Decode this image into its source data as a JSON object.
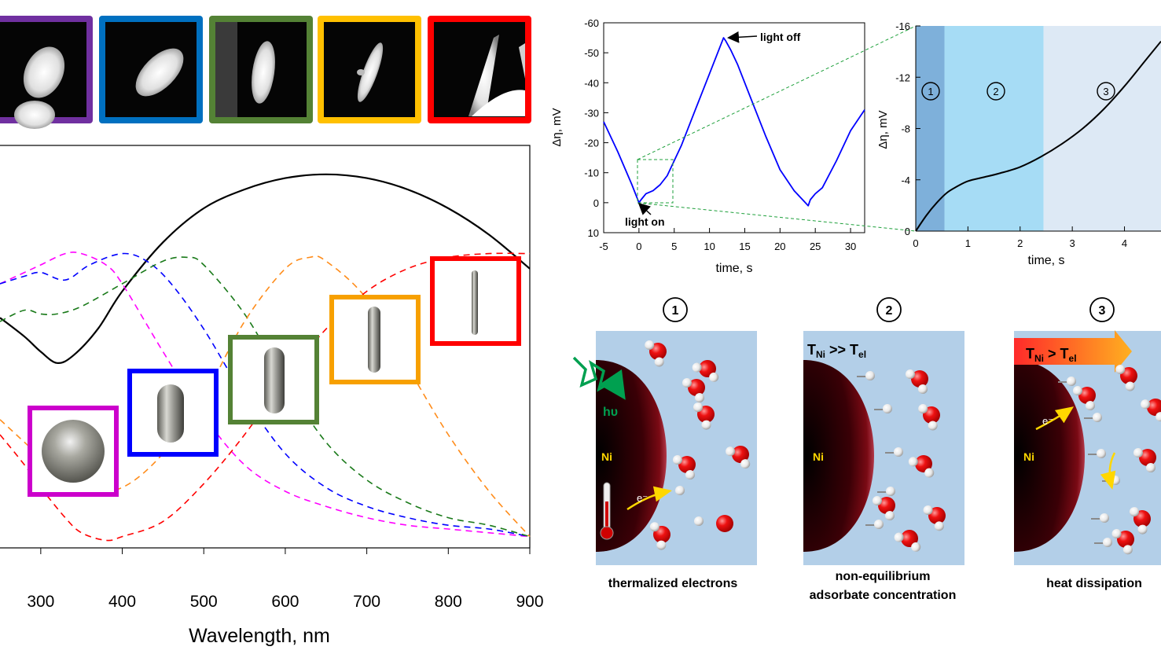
{
  "panel_left": {
    "xlabel": "Wavelength, nm",
    "x_ticks": [
      "300",
      "400",
      "500",
      "600",
      "700",
      "800",
      "900"
    ],
    "frame_colors": [
      "#7030a0",
      "#0070c0",
      "#548235",
      "#ffc000",
      "#ff0000"
    ],
    "shape_box_colors": [
      "#cc00cc",
      "#0000ff",
      "#548235",
      "#f7a000",
      "#ff0000"
    ]
  },
  "chart_data": [
    {
      "type": "line",
      "xlabel": "Wavelength, nm",
      "ylabel": "",
      "xlim": [
        250,
        900
      ],
      "series": [
        {
          "color": "#000000",
          "style": "solid",
          "x": [
            250,
            280,
            300,
            320,
            340,
            370,
            400,
            450,
            500,
            550,
            600,
            650,
            700,
            750,
            800,
            850,
            900
          ],
          "y": [
            0.61,
            0.56,
            0.52,
            0.49,
            0.51,
            0.58,
            0.68,
            0.81,
            0.9,
            0.95,
            0.98,
            0.99,
            0.98,
            0.95,
            0.9,
            0.83,
            0.74
          ]
        },
        {
          "color": "#ff00ff",
          "style": "dashed",
          "x": [
            250,
            280,
            300,
            330,
            350,
            380,
            400,
            450,
            500,
            550,
            600,
            650,
            700,
            750,
            800,
            850,
            900
          ],
          "y": [
            0.7,
            0.73,
            0.75,
            0.78,
            0.78,
            0.75,
            0.7,
            0.52,
            0.35,
            0.22,
            0.15,
            0.11,
            0.08,
            0.06,
            0.05,
            0.04,
            0.03
          ]
        },
        {
          "color": "#0000ff",
          "style": "dashed",
          "x": [
            250,
            280,
            300,
            330,
            360,
            400,
            430,
            460,
            500,
            550,
            600,
            650,
            700,
            750,
            800,
            850,
            900
          ],
          "y": [
            0.7,
            0.72,
            0.73,
            0.71,
            0.75,
            0.78,
            0.76,
            0.7,
            0.58,
            0.4,
            0.25,
            0.16,
            0.11,
            0.08,
            0.06,
            0.05,
            0.03
          ]
        },
        {
          "color": "#1a7a1a",
          "style": "dashed",
          "x": [
            250,
            280,
            300,
            320,
            350,
            400,
            450,
            480,
            500,
            550,
            600,
            650,
            700,
            750,
            800,
            850,
            900
          ],
          "y": [
            0.6,
            0.63,
            0.62,
            0.62,
            0.64,
            0.7,
            0.76,
            0.77,
            0.75,
            0.62,
            0.44,
            0.28,
            0.18,
            0.12,
            0.08,
            0.06,
            0.03
          ]
        },
        {
          "color": "#ff8c1a",
          "style": "dashed",
          "x": [
            250,
            280,
            300,
            330,
            350,
            400,
            450,
            500,
            550,
            600,
            630,
            650,
            700,
            750,
            800,
            850,
            900
          ],
          "y": [
            0.34,
            0.28,
            0.24,
            0.18,
            0.15,
            0.16,
            0.25,
            0.4,
            0.6,
            0.74,
            0.77,
            0.76,
            0.66,
            0.48,
            0.3,
            0.15,
            0.03
          ]
        },
        {
          "color": "#ff0000",
          "style": "dashed",
          "x": [
            250,
            280,
            300,
            330,
            350,
            380,
            400,
            450,
            500,
            550,
            600,
            650,
            700,
            750,
            800,
            850,
            900
          ],
          "y": [
            0.3,
            0.22,
            0.16,
            0.08,
            0.04,
            0.02,
            0.03,
            0.07,
            0.17,
            0.3,
            0.45,
            0.58,
            0.68,
            0.74,
            0.77,
            0.78,
            0.78
          ]
        }
      ]
    },
    {
      "type": "line",
      "xlabel": "time, s",
      "ylabel": "Δη, mV",
      "xlim": [
        -5,
        32
      ],
      "ylim": [
        10,
        -60
      ],
      "x_ticks": [
        "-5",
        "0",
        "5",
        "10",
        "15",
        "20",
        "25",
        "30"
      ],
      "y_ticks": [
        "-60",
        "-50",
        "-40",
        "-30",
        "-20",
        "-10",
        "0",
        "10"
      ],
      "annotations": [
        "light off",
        "light on"
      ],
      "series": [
        {
          "color": "#0000ff",
          "x": [
            -5,
            -3,
            -1,
            0,
            0.3,
            1,
            2,
            3,
            4,
            5,
            6,
            8,
            10,
            12,
            12.3,
            13,
            14,
            16,
            18,
            20,
            22,
            24,
            24.3,
            25,
            26,
            28,
            30,
            32
          ],
          "y": [
            -27,
            -17,
            -6,
            0,
            -1,
            -3,
            -4,
            -6,
            -9,
            -14,
            -19,
            -31,
            -43,
            -55,
            -54,
            -51,
            -46,
            -34,
            -22,
            -11,
            -4,
            1,
            -1,
            -3,
            -5,
            -14,
            -24,
            -31
          ]
        }
      ]
    },
    {
      "type": "line",
      "xlabel": "time, s",
      "ylabel": "Δη, mV",
      "xlim": [
        0,
        4.7
      ],
      "ylim": [
        0,
        -16
      ],
      "x_ticks": [
        "0",
        "1",
        "2",
        "3",
        "4"
      ],
      "y_ticks": [
        "-16",
        "-12",
        "-8",
        "-4",
        "0"
      ],
      "regions": [
        {
          "label": "1",
          "from": 0,
          "to": 0.55,
          "color": "#7eb0da"
        },
        {
          "label": "2",
          "from": 0.55,
          "to": 2.45,
          "color": "#a6dcf5"
        },
        {
          "label": "3",
          "from": 2.45,
          "to": 4.7,
          "color": "#dde9f5"
        }
      ],
      "series": [
        {
          "color": "#000000",
          "x": [
            0,
            0.2,
            0.4,
            0.6,
            0.8,
            1.0,
            1.3,
            1.6,
            2.0,
            2.4,
            2.8,
            3.2,
            3.6,
            4.0,
            4.4,
            4.7
          ],
          "y": [
            0,
            -1.2,
            -2.2,
            -3.0,
            -3.5,
            -3.9,
            -4.2,
            -4.5,
            -5.0,
            -5.8,
            -6.8,
            -8.0,
            -9.5,
            -11.3,
            -13.3,
            -14.8
          ]
        }
      ]
    }
  ],
  "schemes": [
    {
      "step": "1",
      "metal": "Ni",
      "caption_lines": [
        "thermalized electrons"
      ],
      "photon": "hυ",
      "electron": "e⁻"
    },
    {
      "step": "2",
      "metal": "Ni",
      "caption_lines": [
        "non-equilibrium",
        "adsorbate concentration"
      ],
      "temp_relation": "T",
      "sub1": "Ni",
      "rel": " >> T",
      "sub2": "el"
    },
    {
      "step": "3",
      "metal": "Ni",
      "caption_lines": [
        "heat dissipation"
      ],
      "electron": "e⁻",
      "temp_relation": "T",
      "sub1": "Ni",
      "rel": " >  T",
      "sub2": "el"
    }
  ]
}
